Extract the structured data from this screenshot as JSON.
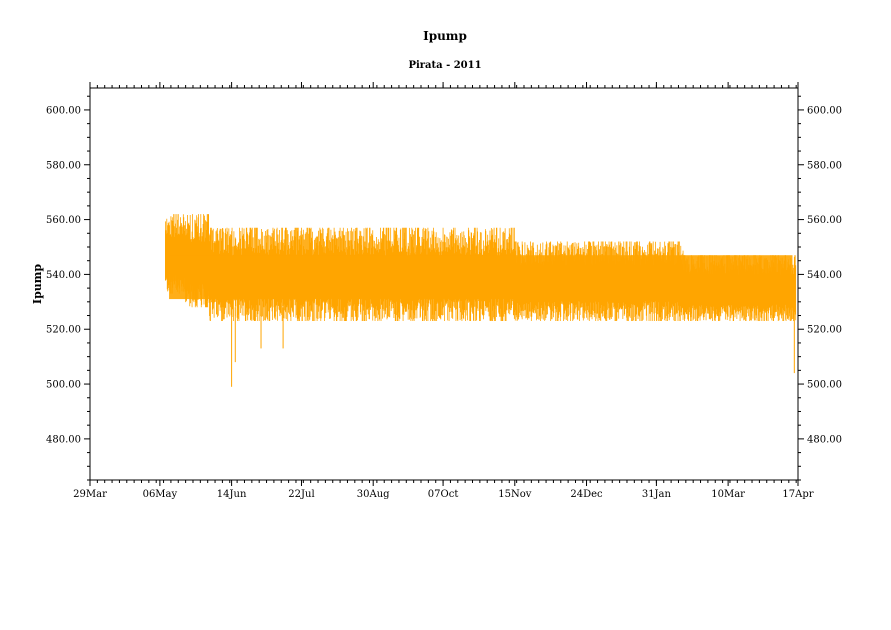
{
  "chart_data": {
    "type": "line",
    "title": "Ipump",
    "subtitle": "Pirata - 2011",
    "ylabel": "Ipump",
    "xlabel": "",
    "ylim": [
      465,
      608
    ],
    "xlim": [
      "2011-03-29",
      "2012-04-17"
    ],
    "x_ticks": [
      "29Mar",
      "06May",
      "14Jun",
      "22Jul",
      "30Aug",
      "07Oct",
      "15Nov",
      "24Dec",
      "31Jan",
      "10Mar",
      "17Apr"
    ],
    "y_ticks": [
      "480.00",
      "500.00",
      "520.00",
      "540.00",
      "560.00",
      "580.00",
      "600.00"
    ],
    "color": "#FFA500",
    "series": [
      {
        "start": "2011-05-09",
        "end": "2012-04-16",
        "segments": [
          {
            "from": "2011-05-09",
            "to": "2011-05-20",
            "low": 533,
            "high": 562
          },
          {
            "from": "2011-05-20",
            "to": "2011-06-02",
            "low": 528,
            "high": 562
          },
          {
            "from": "2011-06-02",
            "to": "2011-06-14",
            "low": 523,
            "high": 557
          },
          {
            "from": "2011-06-14",
            "to": "2011-07-05",
            "low": 523,
            "high": 557
          },
          {
            "from": "2011-07-05",
            "to": "2011-08-15",
            "low": 523,
            "high": 557
          },
          {
            "from": "2011-08-15",
            "to": "2011-10-07",
            "low": 523,
            "high": 557
          },
          {
            "from": "2011-10-07",
            "to": "2011-11-15",
            "low": 523,
            "high": 557
          },
          {
            "from": "2011-11-15",
            "to": "2011-12-15",
            "low": 523,
            "high": 552
          },
          {
            "from": "2011-12-15",
            "to": "2012-02-15",
            "low": 523,
            "high": 552
          },
          {
            "from": "2012-02-15",
            "to": "2012-04-16",
            "low": 523,
            "high": 547
          }
        ],
        "outliers": [
          {
            "x": "2011-06-14",
            "y": 499
          },
          {
            "x": "2011-06-16",
            "y": 508
          },
          {
            "x": "2011-06-30",
            "y": 513
          },
          {
            "x": "2011-07-12",
            "y": 513
          },
          {
            "x": "2012-04-15",
            "y": 504
          }
        ]
      }
    ]
  }
}
